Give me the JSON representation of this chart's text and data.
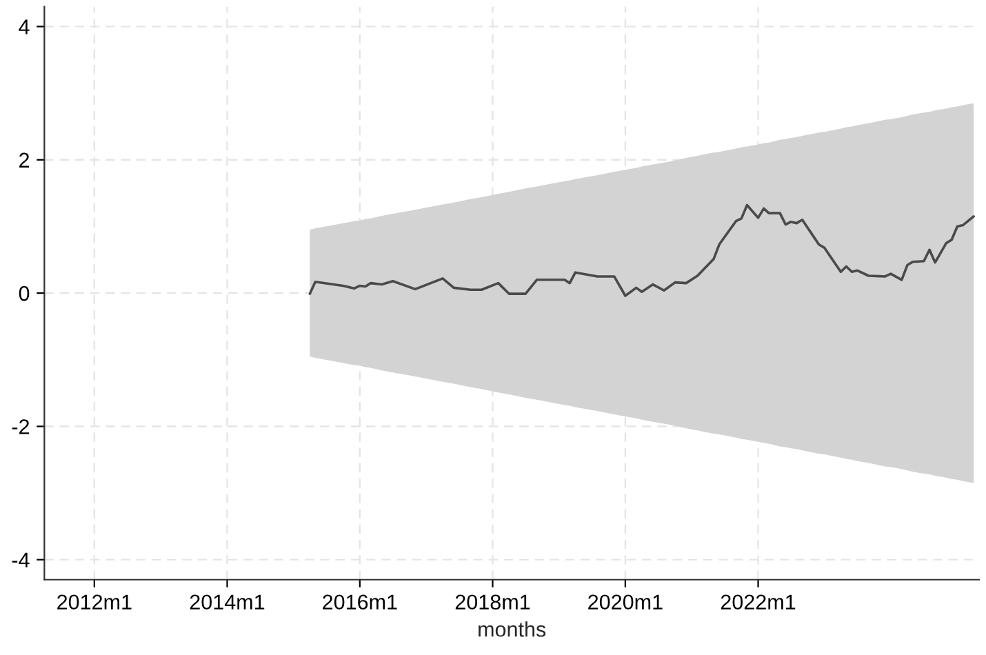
{
  "chart_data": {
    "type": "line",
    "xlabel": "months",
    "series": [
      {
        "color": "#4a4a4a",
        "x": [
          "2015-04",
          "2015-05",
          "2015-10",
          "2015-12",
          "2016-01",
          "2016-02",
          "2016-03",
          "2016-05",
          "2016-07",
          "2016-11",
          "2017-04",
          "2017-06",
          "2017-09",
          "2017-11",
          "2018-02",
          "2018-04",
          "2018-07",
          "2018-09",
          "2019-02",
          "2019-03",
          "2019-04",
          "2019-08",
          "2019-11",
          "2020-01",
          "2020-03",
          "2020-04",
          "2020-06",
          "2020-08",
          "2020-10",
          "2020-12",
          "2021-02",
          "2021-05",
          "2021-06",
          "2021-09",
          "2021-10",
          "2021-11",
          "2022-01",
          "2022-02",
          "2022-03",
          "2022-05",
          "2022-06",
          "2022-07",
          "2022-08",
          "2022-09",
          "2022-12",
          "2023-01",
          "2023-04",
          "2023-05",
          "2023-06",
          "2023-07",
          "2023-09",
          "2023-12",
          "2024-01",
          "2024-03",
          "2024-04",
          "2024-05",
          "2024-07",
          "2024-08",
          "2024-09",
          "2024-11",
          "2024-12",
          "2025-01",
          "2025-02",
          "2025-04"
        ],
        "values": [
          -0.01,
          0.17,
          0.11,
          0.07,
          0.11,
          0.1,
          0.15,
          0.13,
          0.18,
          0.06,
          0.22,
          0.08,
          0.05,
          0.05,
          0.15,
          -0.01,
          -0.01,
          0.2,
          0.2,
          0.15,
          0.31,
          0.25,
          0.25,
          -0.04,
          0.08,
          0.02,
          0.13,
          0.04,
          0.16,
          0.15,
          0.26,
          0.51,
          0.73,
          1.08,
          1.12,
          1.32,
          1.13,
          1.27,
          1.2,
          1.2,
          1.03,
          1.07,
          1.05,
          1.1,
          0.73,
          0.68,
          0.32,
          0.4,
          0.32,
          0.34,
          0.26,
          0.25,
          0.29,
          0.2,
          0.42,
          0.47,
          0.48,
          0.65,
          0.46,
          0.75,
          0.8,
          1.0,
          1.02,
          1.15
        ],
        "upper": [
          0.95,
          0.97,
          1.05,
          1.08,
          1.09,
          1.11,
          1.12,
          1.16,
          1.19,
          1.25,
          1.33,
          1.36,
          1.41,
          1.44,
          1.49,
          1.52,
          1.57,
          1.6,
          1.68,
          1.69,
          1.71,
          1.77,
          1.82,
          1.85,
          1.88,
          1.9,
          1.93,
          1.96,
          1.99,
          2.03,
          2.06,
          2.11,
          2.12,
          2.17,
          2.19,
          2.2,
          2.23,
          2.25,
          2.26,
          2.3,
          2.31,
          2.33,
          2.34,
          2.36,
          2.41,
          2.42,
          2.47,
          2.49,
          2.5,
          2.52,
          2.55,
          2.6,
          2.61,
          2.64,
          2.66,
          2.68,
          2.71,
          2.72,
          2.74,
          2.77,
          2.79,
          2.8,
          2.82,
          2.85
        ],
        "lower": [
          -0.95,
          -0.97,
          -1.05,
          -1.08,
          -1.09,
          -1.11,
          -1.12,
          -1.16,
          -1.19,
          -1.25,
          -1.33,
          -1.36,
          -1.41,
          -1.44,
          -1.49,
          -1.52,
          -1.57,
          -1.6,
          -1.68,
          -1.69,
          -1.71,
          -1.77,
          -1.82,
          -1.85,
          -1.88,
          -1.9,
          -1.93,
          -1.96,
          -1.99,
          -2.03,
          -2.06,
          -2.11,
          -2.12,
          -2.17,
          -2.19,
          -2.2,
          -2.23,
          -2.25,
          -2.26,
          -2.3,
          -2.31,
          -2.33,
          -2.34,
          -2.36,
          -2.41,
          -2.42,
          -2.47,
          -2.49,
          -2.5,
          -2.52,
          -2.55,
          -2.6,
          -2.61,
          -2.64,
          -2.66,
          -2.68,
          -2.71,
          -2.72,
          -2.74,
          -2.77,
          -2.79,
          -2.8,
          -2.82,
          -2.85
        ]
      }
    ],
    "xlim": [
      "2011-04",
      "2025-05"
    ],
    "ylim": [
      -4.3,
      4.3
    ],
    "xticks": [
      {
        "value": "2012-01",
        "label": "2012m1"
      },
      {
        "value": "2014-01",
        "label": "2014m1"
      },
      {
        "value": "2016-01",
        "label": "2016m1"
      },
      {
        "value": "2018-01",
        "label": "2018m1"
      },
      {
        "value": "2020-01",
        "label": "2020m1"
      },
      {
        "value": "2022-01",
        "label": "2022m1"
      }
    ],
    "yticks": [
      {
        "value": -4,
        "label": "-4"
      },
      {
        "value": -2,
        "label": "-2"
      },
      0,
      2,
      4
    ],
    "grid": true,
    "line_style": "solid"
  }
}
